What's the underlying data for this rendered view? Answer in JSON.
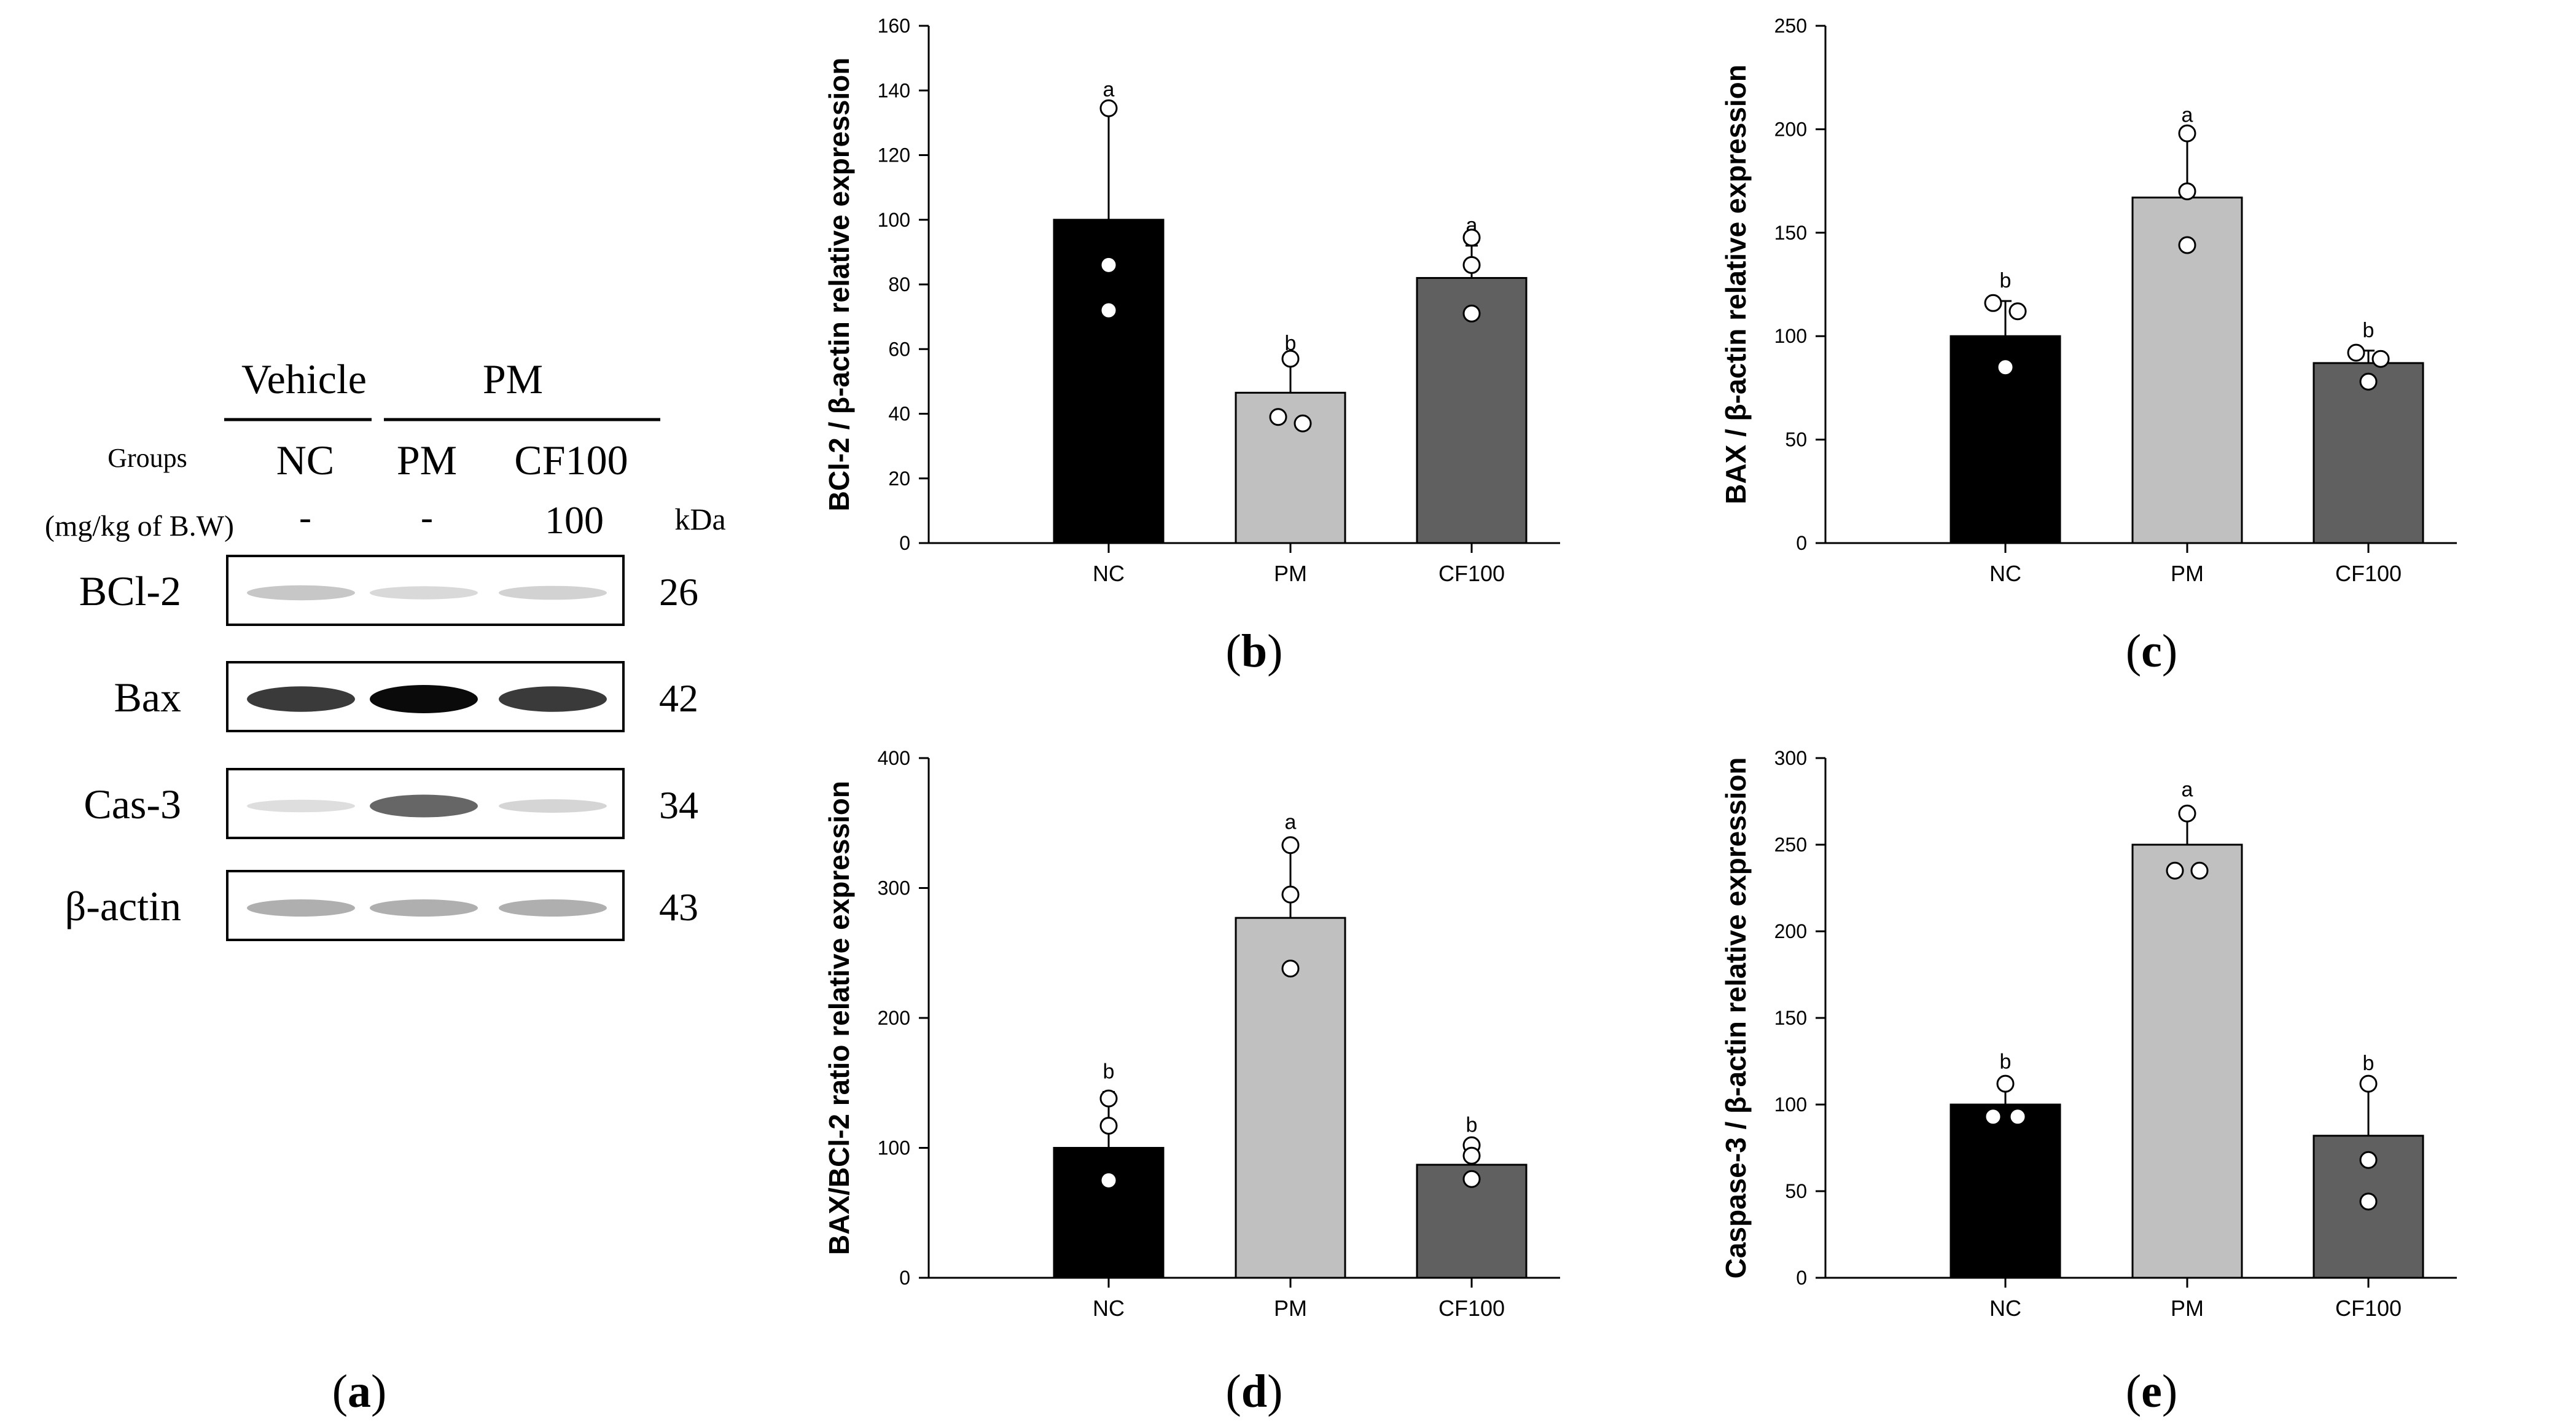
{
  "panel_a": {
    "header_vehicle": "Vehicle",
    "header_pm": "PM",
    "groups_label": "Groups",
    "groups": [
      "NC",
      "PM",
      "CF100"
    ],
    "dose_label": "(mg/kg of B.W)",
    "doses": [
      "-",
      "-",
      "100"
    ],
    "kda_label": "kDa",
    "blots": [
      {
        "protein": "BCl-2",
        "kda": "26",
        "intensities": [
          0.28,
          0.18,
          0.22
        ]
      },
      {
        "protein": "Bax",
        "kda": "42",
        "intensities": [
          0.85,
          1.0,
          0.85
        ]
      },
      {
        "protein": "Cas-3",
        "kda": "34",
        "intensities": [
          0.15,
          0.7,
          0.2
        ]
      },
      {
        "protein": "β-actin",
        "kda": "43",
        "intensities": [
          0.4,
          0.4,
          0.4
        ]
      }
    ],
    "label": "a"
  },
  "chart_data": [
    {
      "panel": "b",
      "type": "bar",
      "ylabel": "BCl-2 / β-actin relative expression",
      "categories": [
        "NC",
        "PM",
        "CF100"
      ],
      "values": [
        100,
        46.5,
        82
      ],
      "errors": [
        34,
        9,
        10
      ],
      "letters": [
        "a",
        "b",
        "a"
      ],
      "points": [
        [
          134.5,
          86,
          72
        ],
        [
          57,
          39,
          37
        ],
        [
          94.5,
          86,
          71
        ]
      ],
      "bar_colors": [
        "#000000",
        "#c0c0c0",
        "#606060"
      ],
      "ylim": [
        0,
        160
      ],
      "yticks": [
        0,
        20,
        40,
        60,
        80,
        100,
        120,
        140,
        160
      ]
    },
    {
      "panel": "c",
      "type": "bar",
      "ylabel": "BAX / β-actin relative expression",
      "categories": [
        "NC",
        "PM",
        "CF100"
      ],
      "values": [
        100,
        167,
        87
      ],
      "errors": [
        17,
        30,
        6
      ],
      "letters": [
        "b",
        "a",
        "b"
      ],
      "points": [
        [
          116,
          112,
          85
        ],
        [
          198,
          170,
          144
        ],
        [
          92,
          89,
          78
        ]
      ],
      "bar_colors": [
        "#000000",
        "#c0c0c0",
        "#606060"
      ],
      "ylim": [
        0,
        250
      ],
      "yticks": [
        0,
        50,
        100,
        150,
        200,
        250
      ]
    },
    {
      "panel": "d",
      "type": "bar",
      "ylabel": "BAX/BCl-2 ratio relative expression",
      "categories": [
        "NC",
        "PM",
        "CF100"
      ],
      "values": [
        100,
        277,
        87
      ],
      "errors": [
        43,
        58,
        15
      ],
      "letters": [
        "b",
        "a",
        "b"
      ],
      "points": [
        [
          138,
          117,
          75
        ],
        [
          333,
          295,
          238
        ],
        [
          102,
          94,
          76
        ]
      ],
      "bar_colors": [
        "#000000",
        "#c0c0c0",
        "#606060"
      ],
      "ylim": [
        0,
        400
      ],
      "yticks": [
        0,
        100,
        200,
        300,
        400
      ]
    },
    {
      "panel": "e",
      "type": "bar",
      "ylabel": "Caspase-3 / β-actin relative expression",
      "categories": [
        "NC",
        "PM",
        "CF100"
      ],
      "values": [
        100,
        250,
        82
      ],
      "errors": [
        13,
        20,
        30
      ],
      "letters": [
        "b",
        "a",
        "b"
      ],
      "points": [
        [
          112,
          93,
          93
        ],
        [
          268,
          235,
          235
        ],
        [
          112,
          68,
          44
        ]
      ],
      "bar_colors": [
        "#000000",
        "#c0c0c0",
        "#606060"
      ],
      "ylim": [
        0,
        300
      ],
      "yticks": [
        0,
        50,
        100,
        150,
        200,
        250,
        300
      ]
    }
  ]
}
